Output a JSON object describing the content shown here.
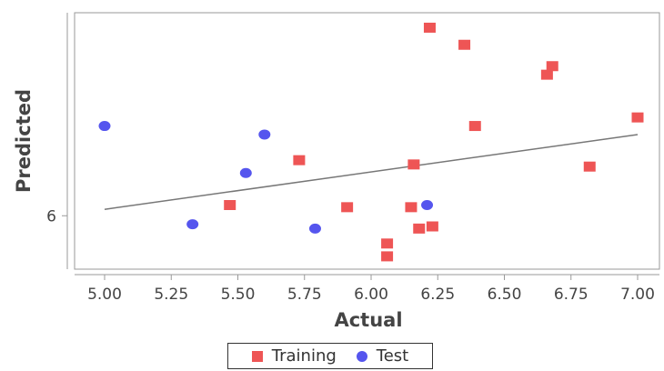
{
  "chart_data": {
    "type": "scatter",
    "xlabel": "Actual",
    "ylabel": "Predicted",
    "xlim": [
      4.9,
      7.05
    ],
    "ylim": [
      5.75,
      6.95
    ],
    "x_ticks": [
      "5.00",
      "5.25",
      "5.50",
      "5.75",
      "6.00",
      "6.25",
      "6.50",
      "6.75",
      "7.00"
    ],
    "x_tick_values": [
      5.0,
      5.25,
      5.5,
      5.75,
      6.0,
      6.25,
      6.5,
      6.75,
      7.0
    ],
    "y_ticks": [
      "6"
    ],
    "y_tick_values": [
      6.0
    ],
    "grid": false,
    "legend_position": "bottom",
    "series": [
      {
        "name": "Training",
        "marker": "square",
        "color": "#ee5555",
        "points": [
          [
            5.47,
            6.05
          ],
          [
            5.73,
            6.26
          ],
          [
            5.91,
            6.04
          ],
          [
            6.06,
            5.87
          ],
          [
            6.06,
            5.81
          ],
          [
            6.15,
            6.04
          ],
          [
            6.16,
            6.24
          ],
          [
            6.18,
            5.94
          ],
          [
            6.22,
            6.88
          ],
          [
            6.23,
            5.95
          ],
          [
            6.35,
            6.8
          ],
          [
            6.39,
            6.42
          ],
          [
            6.66,
            6.66
          ],
          [
            6.68,
            6.7
          ],
          [
            6.82,
            6.23
          ],
          [
            7.0,
            6.46
          ]
        ]
      },
      {
        "name": "Test",
        "marker": "circle",
        "color": "#5555ee",
        "points": [
          [
            5.0,
            6.42
          ],
          [
            5.33,
            5.96
          ],
          [
            5.53,
            6.2
          ],
          [
            5.6,
            6.38
          ],
          [
            5.79,
            5.94
          ],
          [
            6.21,
            6.05
          ]
        ]
      }
    ],
    "trend_line": {
      "color": "#777777",
      "x": [
        5.0,
        7.0
      ],
      "y": [
        6.03,
        6.38
      ]
    }
  }
}
